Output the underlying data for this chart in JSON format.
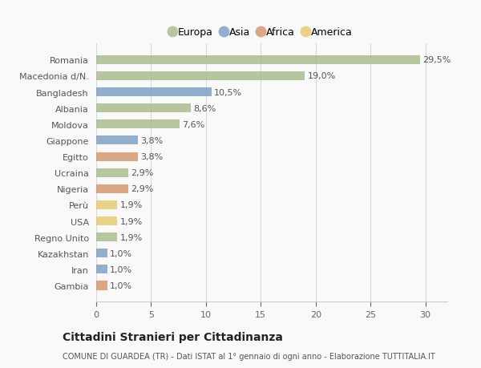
{
  "categories": [
    "Romania",
    "Macedonia d/N.",
    "Bangladesh",
    "Albania",
    "Moldova",
    "Giappone",
    "Egitto",
    "Ucraina",
    "Nigeria",
    "Perù",
    "USA",
    "Regno Unito",
    "Kazakhstan",
    "Iran",
    "Gambia"
  ],
  "values": [
    29.5,
    19.0,
    10.5,
    8.6,
    7.6,
    3.8,
    3.8,
    2.9,
    2.9,
    1.9,
    1.9,
    1.9,
    1.0,
    1.0,
    1.0
  ],
  "labels": [
    "29,5%",
    "19,0%",
    "10,5%",
    "8,6%",
    "7,6%",
    "3,8%",
    "3,8%",
    "2,9%",
    "2,9%",
    "1,9%",
    "1,9%",
    "1,9%",
    "1,0%",
    "1,0%",
    "1,0%"
  ],
  "continents": [
    "Europa",
    "Europa",
    "Asia",
    "Europa",
    "Europa",
    "Asia",
    "Africa",
    "Europa",
    "Africa",
    "America",
    "America",
    "Europa",
    "Asia",
    "Asia",
    "Africa"
  ],
  "colors": {
    "Europa": "#a8bb8a",
    "Asia": "#7b9ec4",
    "Africa": "#d4956a",
    "America": "#e8c96a"
  },
  "legend_order": [
    "Europa",
    "Asia",
    "Africa",
    "America"
  ],
  "title": "Cittadini Stranieri per Cittadinanza",
  "subtitle": "COMUNE DI GUARDEA (TR) - Dati ISTAT al 1° gennaio di ogni anno - Elaborazione TUTTITALIA.IT",
  "xlim": [
    0,
    32
  ],
  "xticks": [
    0,
    5,
    10,
    15,
    20,
    25,
    30
  ],
  "background_color": "#f9f9f9",
  "grid_color": "#d8d8d8",
  "bar_height": 0.55,
  "label_fontsize": 8,
  "ytick_fontsize": 8,
  "xtick_fontsize": 8
}
